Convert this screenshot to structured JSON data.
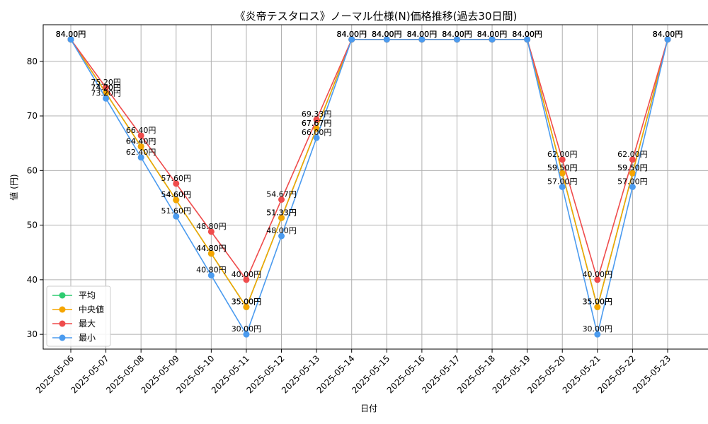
{
  "chart_data": {
    "type": "line",
    "title": "《炎帝テスタロス》ノーマル仕様(N)価格推移(過去30日間)",
    "xlabel": "日付",
    "ylabel": "値 (円)",
    "ylim": [
      27.3,
      86.7
    ],
    "yticks": [
      30,
      40,
      50,
      60,
      70,
      80
    ],
    "grid": true,
    "legend_position": "bottom-left",
    "value_suffix": "円",
    "categories": [
      "2025-05-06",
      "2025-05-07",
      "2025-05-08",
      "2025-05-09",
      "2025-05-10",
      "2025-05-11",
      "2025-05-12",
      "2025-05-13",
      "2025-05-14",
      "2025-05-15",
      "2025-05-16",
      "2025-05-17",
      "2025-05-18",
      "2025-05-19",
      "2025-05-20",
      "2025-05-21",
      "2025-05-22",
      "2025-05-23"
    ],
    "series": [
      {
        "name": "平均",
        "color": "#2ecc71",
        "values": [
          84.0,
          74.2,
          64.4,
          54.6,
          44.8,
          35.0,
          51.33,
          67.67,
          84.0,
          84.0,
          84.0,
          84.0,
          84.0,
          84.0,
          59.5,
          35.0,
          59.5,
          84.0
        ]
      },
      {
        "name": "中央値",
        "color": "#f5a500",
        "values": [
          84.0,
          74.2,
          64.4,
          54.6,
          44.8,
          35.0,
          51.33,
          67.67,
          84.0,
          84.0,
          84.0,
          84.0,
          84.0,
          84.0,
          59.5,
          35.0,
          59.5,
          84.0
        ]
      },
      {
        "name": "最大",
        "color": "#ef4c4c",
        "values": [
          84.0,
          75.2,
          66.4,
          57.6,
          48.8,
          40.0,
          54.67,
          69.33,
          84.0,
          84.0,
          84.0,
          84.0,
          84.0,
          84.0,
          62.0,
          40.0,
          62.0,
          84.0
        ]
      },
      {
        "name": "最小",
        "color": "#4b9bef",
        "values": [
          84.0,
          73.2,
          62.4,
          51.6,
          40.8,
          30.0,
          48.0,
          66.0,
          84.0,
          84.0,
          84.0,
          84.0,
          84.0,
          84.0,
          57.0,
          30.0,
          57.0,
          84.0
        ]
      }
    ]
  }
}
